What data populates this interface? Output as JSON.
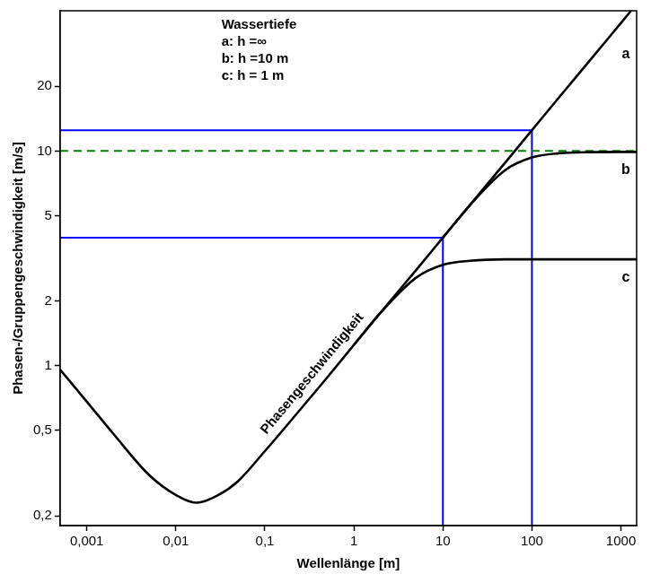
{
  "chart_data": {
    "type": "line",
    "log": true,
    "grid": false,
    "xlabel": "Wellenlänge [m]",
    "ylabel": "Phasen-/Gruppengeschwindigkeit [m/s]",
    "xlim": [
      0.0005,
      1500
    ],
    "ylim": [
      0.18,
      45
    ],
    "xticks": [
      {
        "value": 0.001,
        "label": "0,001"
      },
      {
        "value": 0.01,
        "label": "0,01"
      },
      {
        "value": 0.1,
        "label": "0,1"
      },
      1,
      10,
      100,
      1000
    ],
    "yticks": [
      {
        "value": 0.2,
        "label": "0,2"
      },
      {
        "value": 0.5,
        "label": "0,5"
      },
      1,
      2,
      5,
      10,
      20
    ],
    "curve_label": "Phasengeschwindigkeit",
    "depth_key": {
      "title": "Wassertiefe",
      "entries": [
        "a: h =∞",
        "b: h =10 m",
        "c: h = 1 m"
      ]
    },
    "series": [
      {
        "name": "a",
        "color": "#000000",
        "line_style": "solid",
        "x": [
          0.0005,
          0.001,
          0.002,
          0.005,
          0.01,
          0.017,
          0.03,
          0.05,
          0.1,
          0.2,
          0.5,
          1,
          2,
          5,
          10,
          20,
          50,
          100,
          200,
          500,
          1000,
          1300
        ],
        "values": [
          0.96,
          0.68,
          0.48,
          0.31,
          0.25,
          0.23,
          0.25,
          0.29,
          0.4,
          0.56,
          0.88,
          1.25,
          1.77,
          2.79,
          3.95,
          5.59,
          8.83,
          12.5,
          17.7,
          27.9,
          39.5,
          45
        ]
      },
      {
        "name": "b",
        "color": "#000000",
        "line_style": "solid",
        "x": [
          10,
          20,
          50,
          100,
          200,
          500,
          1000,
          1500
        ],
        "values": [
          3.95,
          5.58,
          8.14,
          9.33,
          9.76,
          9.88,
          9.9,
          9.9
        ]
      },
      {
        "name": "c",
        "color": "#000000",
        "line_style": "solid",
        "x": [
          1,
          2,
          5,
          10,
          20,
          50,
          100,
          1500
        ],
        "values": [
          1.25,
          1.77,
          2.57,
          2.95,
          3.08,
          3.13,
          3.13,
          3.13
        ]
      }
    ],
    "reference_lines": {
      "color": "#0000ff",
      "points": [
        {
          "x": 10,
          "y": 3.95
        },
        {
          "x": 100,
          "y": 12.5
        }
      ]
    },
    "threshold": {
      "value": 10,
      "color": "#008000",
      "line_style": "dashed"
    }
  }
}
